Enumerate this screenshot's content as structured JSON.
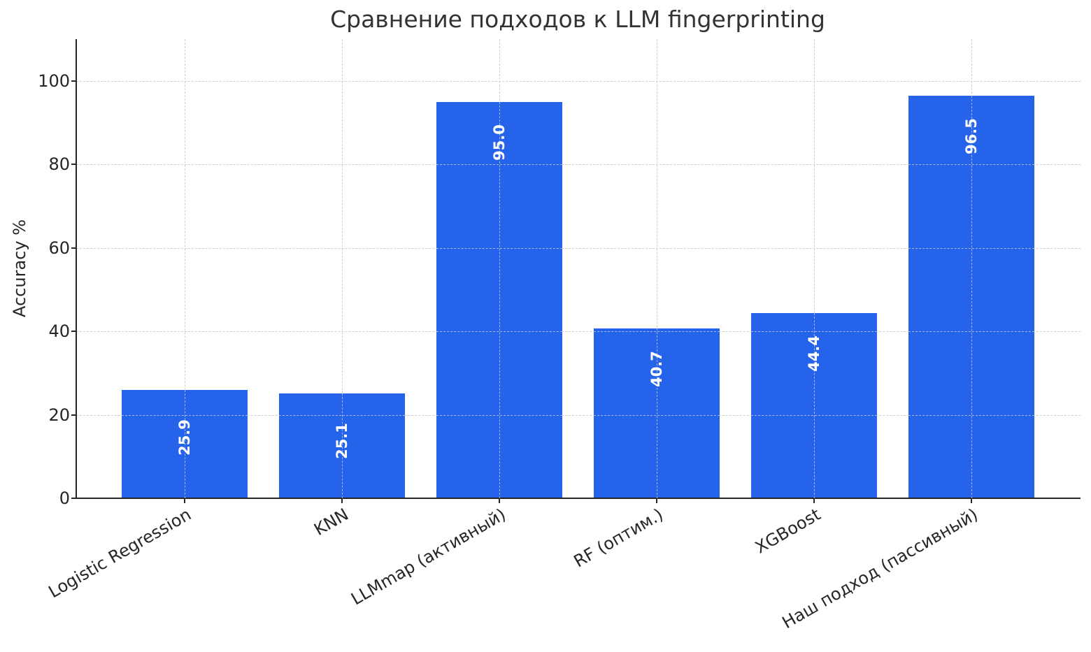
{
  "chart_data": {
    "type": "bar",
    "title": "Сравнение подходов к LLM fingerprinting",
    "xlabel": "",
    "ylabel": "Accuracy %",
    "categories": [
      "Logistic Regression",
      "KNN",
      "LLMmap (активный)",
      "RF (оптим.)",
      "XGBoost",
      "Наш подход (пассивный)"
    ],
    "values": [
      25.9,
      25.1,
      95.0,
      40.7,
      44.4,
      96.5
    ],
    "value_labels": [
      "25.9",
      "25.1",
      "95.0",
      "40.7",
      "44.4",
      "96.5"
    ],
    "ylim": [
      0,
      110
    ],
    "yticks": [
      0,
      20,
      40,
      60,
      80,
      100
    ],
    "ytick_labels": [
      "0",
      "20",
      "40",
      "60",
      "80",
      "100"
    ],
    "grid": true,
    "grid_style": "dashed",
    "bar_color": "#2563eb",
    "label_color": "#ffffff",
    "xtick_rotation": 30,
    "legend": null
  }
}
